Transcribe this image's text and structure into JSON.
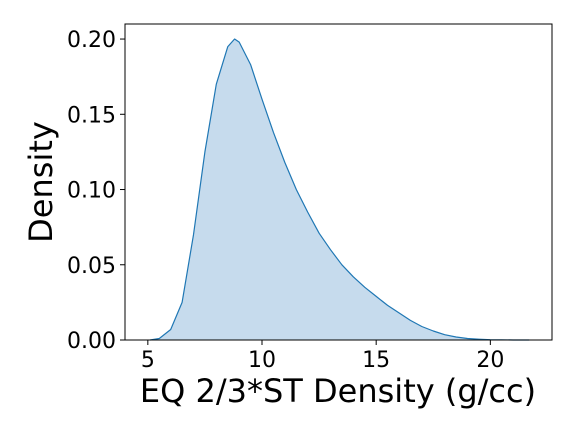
{
  "chart_data": {
    "type": "area",
    "title": "",
    "xlabel": "EQ 2/3*ST Density (g/cc)",
    "ylabel": "Density",
    "xlim": [
      4.0,
      22.7
    ],
    "ylim": [
      0.0,
      0.21
    ],
    "xticks": [
      5,
      10,
      15,
      20
    ],
    "xtick_labels": [
      "5",
      "10",
      "15",
      "20"
    ],
    "yticks": [
      0.0,
      0.05,
      0.1,
      0.15,
      0.2
    ],
    "ytick_labels": [
      "0.00",
      "0.05",
      "0.10",
      "0.15",
      "0.20"
    ],
    "grid": false,
    "legend": "none",
    "series": [
      {
        "x": [
          5.1,
          5.5,
          6.0,
          6.5,
          7.0,
          7.5,
          8.0,
          8.5,
          8.8,
          9.0,
          9.5,
          10.0,
          10.5,
          11.0,
          11.5,
          12.0,
          12.5,
          13.0,
          13.5,
          14.0,
          14.5,
          15.0,
          15.5,
          16.0,
          16.5,
          17.0,
          17.5,
          18.0,
          18.5,
          19.0,
          19.5,
          20.0,
          20.5,
          21.0,
          21.7
        ],
        "y": [
          0.0,
          0.001,
          0.007,
          0.025,
          0.07,
          0.125,
          0.17,
          0.195,
          0.2,
          0.198,
          0.183,
          0.16,
          0.138,
          0.118,
          0.1,
          0.085,
          0.071,
          0.06,
          0.05,
          0.042,
          0.035,
          0.029,
          0.023,
          0.018,
          0.013,
          0.009,
          0.006,
          0.0035,
          0.002,
          0.001,
          0.0005,
          0.0002,
          0.0001,
          0.0,
          0.0
        ]
      }
    ],
    "colors": {
      "line": "#1f77b4",
      "fill": "#c6dbed",
      "axes": "#000000"
    }
  }
}
